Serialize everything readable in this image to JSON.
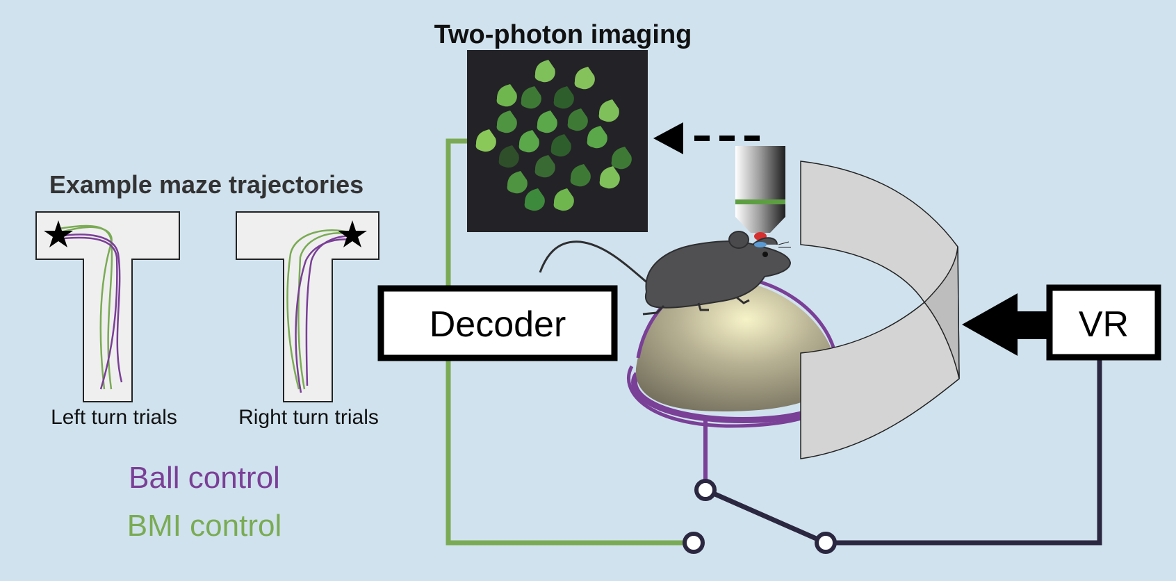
{
  "titles": {
    "imaging": "Two-photon imaging",
    "maze": "Example maze trajectories"
  },
  "maze_labels": {
    "left": "Left turn trials",
    "right": "Right turn trials"
  },
  "legend": {
    "ball": "Ball control",
    "bmi": "BMI control"
  },
  "boxes": {
    "decoder": "Decoder",
    "vr": "VR"
  },
  "colors": {
    "background": "#d0e2ee",
    "ball_purple": "#7a3f96",
    "bmi_green": "#7aab54",
    "wire_dark": "#2b2740"
  }
}
